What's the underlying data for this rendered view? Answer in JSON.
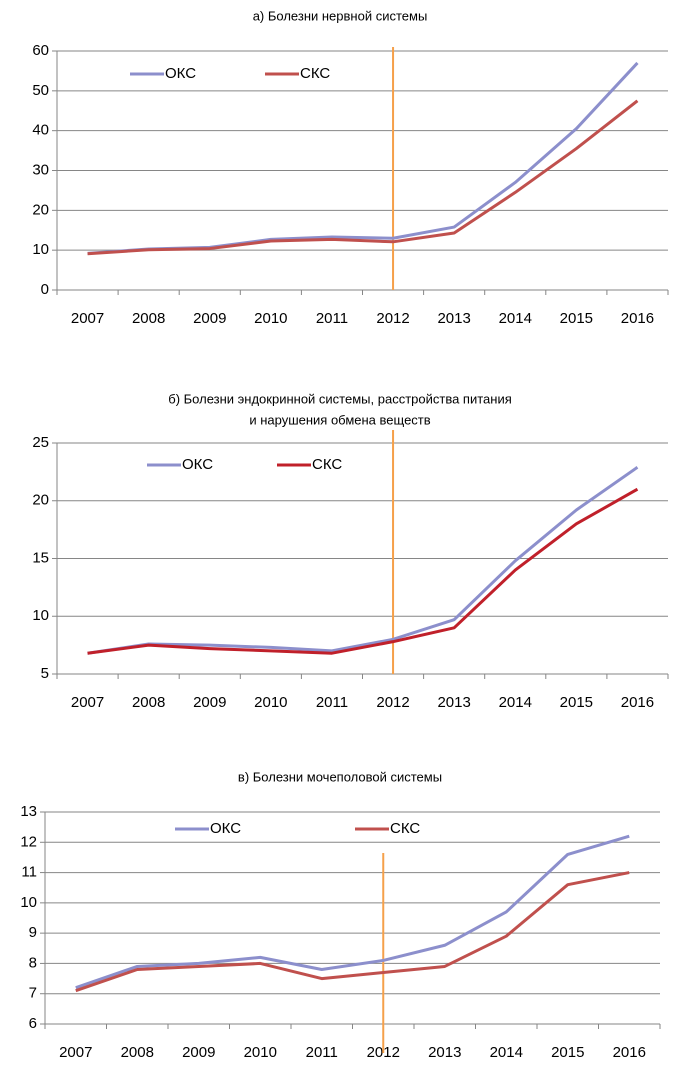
{
  "chart_data": [
    {
      "type": "line",
      "title": [
        "а) Болезни нервной системы"
      ],
      "categories": [
        "2007",
        "2008",
        "2009",
        "2010",
        "2011",
        "2012",
        "2013",
        "2014",
        "2015",
        "2016"
      ],
      "series": [
        {
          "name": "ОКС",
          "color": "#8c8fcc",
          "values": [
            9.2,
            10.3,
            10.7,
            12.7,
            13.3,
            13.0,
            15.8,
            27,
            40.5,
            57
          ]
        },
        {
          "name": "СКС",
          "color": "#c0504d",
          "values": [
            9.1,
            10.1,
            10.4,
            12.3,
            12.7,
            12.1,
            14.3,
            24.5,
            35.5,
            47.5
          ]
        }
      ],
      "ylim": [
        0,
        60
      ],
      "yticks": [
        0,
        10,
        20,
        30,
        40,
        50,
        60
      ],
      "grid": true,
      "legend": "top-left",
      "vline": {
        "category": "2012",
        "color": "#f5a04a"
      }
    },
    {
      "type": "line",
      "title": [
        "б) Болезни эндокринной системы, расстройства питания",
        "и нарушения обмена веществ"
      ],
      "categories": [
        "2007",
        "2008",
        "2009",
        "2010",
        "2011",
        "2012",
        "2013",
        "2014",
        "2015",
        "2016"
      ],
      "series": [
        {
          "name": "ОКС",
          "color": "#8c8fcc",
          "values": [
            6.8,
            7.6,
            7.5,
            7.3,
            7.0,
            8.0,
            9.7,
            14.8,
            19.2,
            22.9
          ]
        },
        {
          "name": "СКС",
          "color": "#c0202a",
          "values": [
            6.8,
            7.5,
            7.2,
            7.0,
            6.8,
            7.8,
            9.0,
            14.0,
            18.0,
            21.0
          ]
        }
      ],
      "ylim": [
        5,
        25
      ],
      "yticks": [
        5,
        10,
        15,
        20,
        25
      ],
      "grid": true,
      "legend": "top-left",
      "vline": {
        "category": "2012",
        "color": "#f5a04a"
      }
    },
    {
      "type": "line",
      "title": [
        "в) Болезни мочеполовой системы"
      ],
      "categories": [
        "2007",
        "2008",
        "2009",
        "2010",
        "2011",
        "2012",
        "2013",
        "2014",
        "2015",
        "2016"
      ],
      "series": [
        {
          "name": "ОКС",
          "color": "#8c8fcc",
          "values": [
            7.2,
            7.9,
            8.0,
            8.2,
            7.8,
            8.1,
            8.6,
            9.7,
            11.6,
            12.2
          ]
        },
        {
          "name": "СКС",
          "color": "#c0504d",
          "values": [
            7.1,
            7.8,
            7.9,
            8.0,
            7.5,
            7.7,
            7.9,
            8.9,
            10.6,
            11.0
          ]
        }
      ],
      "ylim": [
        6,
        13
      ],
      "yticks": [
        6,
        7,
        8,
        9,
        10,
        11,
        12,
        13
      ],
      "grid": true,
      "legend": "top-left",
      "vline": {
        "category": "2012",
        "color": "#f5a04a"
      }
    }
  ]
}
